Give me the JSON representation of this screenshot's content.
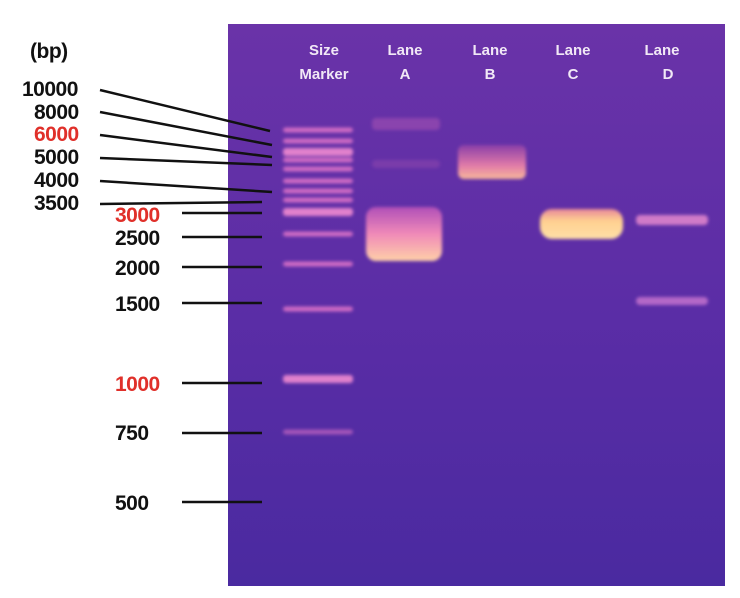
{
  "unit_label": "(bp)",
  "lane_headers": [
    {
      "line1": "Size",
      "line2": "Marker"
    },
    {
      "line1": "Lane",
      "line2": "A"
    },
    {
      "line1": "Lane",
      "line2": "B"
    },
    {
      "line1": "Lane",
      "line2": "C"
    },
    {
      "line1": "Lane",
      "line2": "D"
    }
  ],
  "marker_labels": [
    {
      "text": "10000",
      "color": "#111111"
    },
    {
      "text": "8000",
      "color": "#111111"
    },
    {
      "text": "6000",
      "color": "#e0302a"
    },
    {
      "text": "5000",
      "color": "#111111"
    },
    {
      "text": "4000",
      "color": "#111111"
    },
    {
      "text": "3500",
      "color": "#111111"
    },
    {
      "text": "3000",
      "color": "#e0302a"
    },
    {
      "text": "2500",
      "color": "#111111"
    },
    {
      "text": "2000",
      "color": "#111111"
    },
    {
      "text": "1500",
      "color": "#111111"
    },
    {
      "text": "1000",
      "color": "#e0302a"
    },
    {
      "text": "750",
      "color": "#111111"
    },
    {
      "text": "500",
      "color": "#111111"
    }
  ],
  "colors": {
    "gel": "#5a2ba0",
    "band_bright": "#ffd89a",
    "band_marker": "#e878c8"
  }
}
